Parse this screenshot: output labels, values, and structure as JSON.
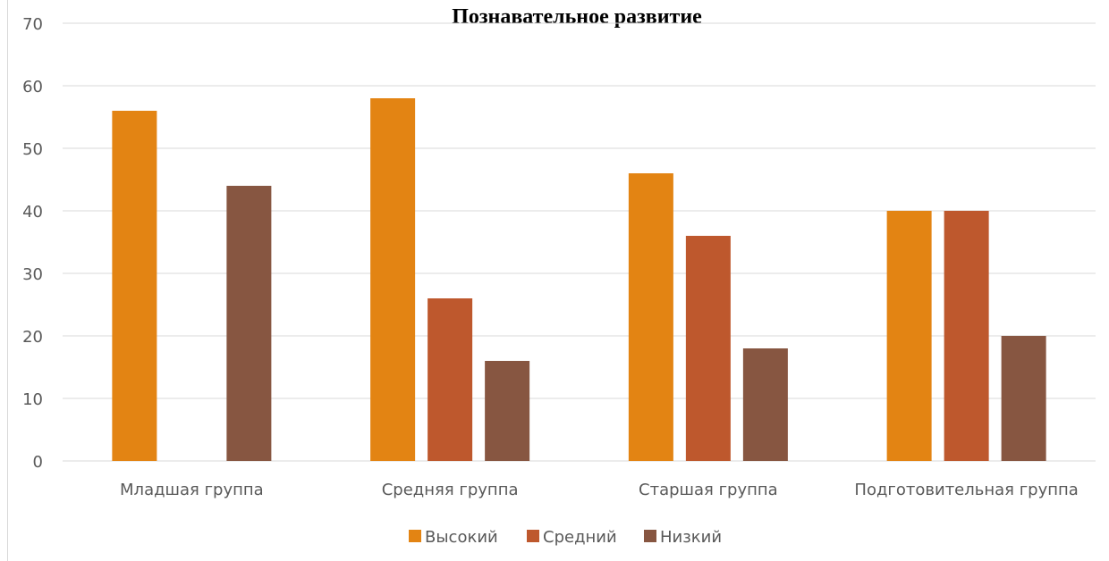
{
  "chart_data": {
    "type": "bar",
    "title": "Познавательное развитие",
    "categories": [
      "Младшая группа",
      "Средняя группа",
      "Старшая группа",
      "Подготовительная группа"
    ],
    "series": [
      {
        "name": "Высокий",
        "values": [
          56,
          58,
          46,
          40
        ],
        "color": "#E38413"
      },
      {
        "name": "Средний",
        "values": [
          0,
          26,
          36,
          40
        ],
        "color": "#BE582D"
      },
      {
        "name": "Низкий",
        "values": [
          44,
          16,
          18,
          20
        ],
        "color": "#875641"
      }
    ],
    "ylim": [
      0,
      70
    ],
    "yticks": [
      0,
      10,
      20,
      30,
      40,
      50,
      60,
      70
    ],
    "grid": true,
    "legend_position": "bottom"
  }
}
